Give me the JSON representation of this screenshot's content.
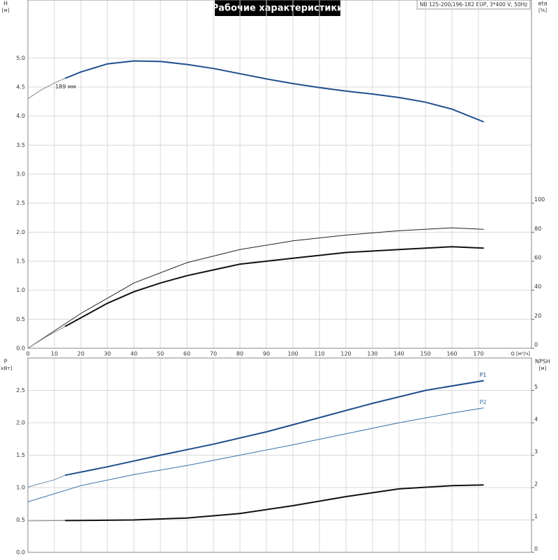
{
  "title": "Рабочие характеристики",
  "model": "NB 125-200/196-182 EUP, 3*400 V, 50Hz",
  "chart_data": [
    {
      "type": "line",
      "ylabel": "H",
      "yunit": "[м]",
      "y2label": "eta",
      "y2unit": "[%]",
      "xlabel": "Q [м³/ч]",
      "xlim": [
        0,
        190
      ],
      "xticks": [
        0,
        10,
        20,
        30,
        40,
        50,
        60,
        70,
        80,
        90,
        100,
        110,
        120,
        130,
        140,
        150,
        160,
        170
      ],
      "ylim": [
        0,
        6
      ],
      "yticks": [
        {
          "value": 0,
          "label": "0.0"
        },
        0.5,
        {
          "value": 1,
          "label": "1.0"
        },
        1.5,
        {
          "value": 2,
          "label": "2.0"
        },
        2.5,
        {
          "value": 3,
          "label": "3.0"
        },
        3.5,
        {
          "value": 4,
          "label": "4.0"
        },
        4.5,
        {
          "value": 5,
          "label": "5.0"
        }
      ],
      "y2lim": [
        0,
        240
      ],
      "y2ticks": [
        0,
        20,
        40,
        60,
        80,
        100
      ],
      "grid": true,
      "series": [
        {
          "color": "#888888",
          "line_width": 1,
          "x": [
            0,
            5,
            10,
            14
          ],
          "values": [
            4.3,
            4.45,
            4.57,
            4.65
          ]
        },
        {
          "name": "189 мм",
          "label_at": "start",
          "color": "#1f4e8c",
          "line_width": 2,
          "x": [
            14,
            20,
            30,
            40,
            50,
            60,
            70,
            80,
            90,
            100,
            110,
            120,
            130,
            140,
            150,
            160,
            172
          ],
          "values": [
            4.65,
            4.76,
            4.9,
            4.95,
            4.94,
            4.89,
            4.82,
            4.73,
            4.64,
            4.56,
            4.49,
            4.43,
            4.38,
            4.32,
            4.24,
            4.12,
            3.9
          ]
        },
        {
          "axis": "y2",
          "color": "#222222",
          "line_width": 1,
          "x": [
            0,
            10,
            20,
            40,
            60,
            80,
            100,
            120,
            140,
            160,
            172
          ],
          "values": [
            0,
            12,
            24,
            45,
            59,
            68,
            74,
            78,
            81,
            83,
            82
          ]
        },
        {
          "axis": "y2",
          "color": "#888888",
          "line_width": 1,
          "x": [
            0,
            7,
            14
          ],
          "values": [
            0,
            8,
            15
          ]
        },
        {
          "axis": "y2",
          "color": "#111111",
          "line_width": 2,
          "x": [
            14,
            20,
            30,
            40,
            50,
            60,
            70,
            80,
            90,
            100,
            120,
            140,
            160,
            172
          ],
          "values": [
            15,
            21,
            31,
            39,
            45,
            50,
            54,
            58,
            60,
            62,
            66,
            68,
            70,
            69
          ]
        }
      ]
    },
    {
      "type": "line",
      "ylabel": "P",
      "yunit": "[кВт]",
      "y2label": "NPSH",
      "y2unit": "[м]",
      "xlim": [
        0,
        190
      ],
      "ylim": [
        0,
        3
      ],
      "yticks": [
        {
          "value": 0,
          "label": "0.0"
        },
        0.5,
        {
          "value": 1,
          "label": "1.0"
        },
        1.5,
        {
          "value": 2,
          "label": "2.0"
        },
        2.5
      ],
      "y2lim": [
        0,
        6
      ],
      "y2ticks": [
        0,
        1,
        2,
        3,
        4,
        5
      ],
      "grid": true,
      "series": [
        {
          "color": "#6688aa",
          "line_width": 1,
          "x": [
            0,
            10,
            14
          ],
          "values": [
            1.01,
            1.12,
            1.19
          ]
        },
        {
          "name": "P1",
          "label_at": "end",
          "color": "#1f4e8c",
          "line_width": 2,
          "x": [
            14,
            30,
            50,
            70,
            90,
            110,
            130,
            150,
            172
          ],
          "values": [
            1.19,
            1.32,
            1.5,
            1.67,
            1.86,
            2.08,
            2.3,
            2.5,
            2.65
          ]
        },
        {
          "name": "P2",
          "label_at": "end",
          "color": "#3a6fa8",
          "line_width": 1,
          "x": [
            0,
            20,
            40,
            60,
            80,
            100,
            120,
            140,
            160,
            172
          ],
          "values": [
            0.78,
            1.03,
            1.2,
            1.34,
            1.5,
            1.66,
            1.83,
            2.0,
            2.15,
            2.23
          ]
        },
        {
          "axis": "y2",
          "color": "#888888",
          "line_width": 1,
          "x": [
            0,
            14
          ],
          "values": [
            0.97,
            0.98
          ]
        },
        {
          "axis": "y2",
          "color": "#111111",
          "line_width": 2,
          "x": [
            14,
            40,
            60,
            80,
            100,
            120,
            140,
            160,
            172
          ],
          "values": [
            0.98,
            1.0,
            1.06,
            1.2,
            1.44,
            1.72,
            1.96,
            2.06,
            2.08
          ]
        }
      ]
    }
  ]
}
